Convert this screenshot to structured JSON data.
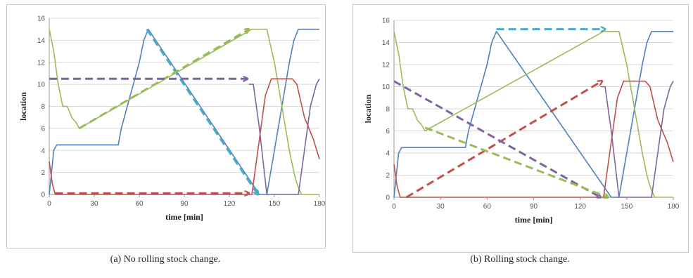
{
  "captions": {
    "a": "(a) No rolling stock change.",
    "b": "(b) Rolling stock change."
  },
  "chart_data": [
    {
      "type": "line",
      "xlabel": "time [min]",
      "ylabel": "location",
      "xlim": [
        0,
        180
      ],
      "ylim": [
        0,
        16
      ],
      "xticks": [
        0,
        30,
        60,
        90,
        120,
        150,
        180
      ],
      "yticks": [
        0,
        2,
        4,
        6,
        8,
        10,
        12,
        14,
        16
      ],
      "grid": "horizontal",
      "series": [
        {
          "color": "#4f81bd",
          "x": [
            0,
            3,
            5,
            46,
            48,
            52,
            56,
            60,
            63,
            66,
            140,
            145,
            150,
            155,
            160,
            163,
            166,
            180
          ],
          "y": [
            0,
            4,
            4.5,
            4.5,
            6,
            8,
            10,
            12,
            14,
            15,
            0,
            0,
            4,
            8,
            12,
            14,
            15,
            15
          ]
        },
        {
          "color": "#9bbb59",
          "x": [
            0,
            3,
            6,
            9,
            12,
            15,
            18,
            20,
            135,
            145,
            150,
            155,
            160,
            163,
            165,
            168,
            180
          ],
          "y": [
            15,
            13,
            10,
            8,
            8,
            7,
            6.5,
            6,
            15,
            15,
            12,
            8,
            4,
            2,
            1,
            0,
            0
          ]
        },
        {
          "color": "#c0504d",
          "x": [
            0,
            2,
            4,
            135,
            138,
            141,
            144,
            148,
            162,
            165,
            170,
            176,
            180
          ],
          "y": [
            3,
            1,
            0,
            0,
            3,
            6,
            9,
            10.5,
            10.5,
            10,
            7,
            5,
            3.2
          ]
        },
        {
          "color": "#8064a2",
          "x": [
            133,
            136,
            140,
            145,
            152,
            160,
            166,
            170,
            174,
            178,
            180
          ],
          "y": [
            10,
            10,
            6,
            0,
            0,
            0,
            0,
            4,
            8,
            10,
            10.5
          ]
        }
      ],
      "arrows": [
        {
          "color": "#4bacc6",
          "from": [
            65,
            15
          ],
          "to": [
            139,
            0
          ]
        },
        {
          "color": "#9bbb59",
          "from": [
            20,
            6
          ],
          "to": [
            133,
            15
          ]
        },
        {
          "color": "#8064a2",
          "from": [
            0,
            10.5
          ],
          "to": [
            132,
            10.5
          ]
        },
        {
          "color": "#c0504d",
          "from": [
            4,
            0.1
          ],
          "to": [
            133,
            0.1
          ]
        }
      ]
    },
    {
      "type": "line",
      "xlabel": "time [min]",
      "ylabel": "location",
      "xlim": [
        0,
        180
      ],
      "ylim": [
        0,
        16
      ],
      "xticks": [
        0,
        30,
        60,
        90,
        120,
        150,
        180
      ],
      "yticks": [
        0,
        2,
        4,
        6,
        8,
        10,
        12,
        14,
        16
      ],
      "grid": "horizontal",
      "series": [
        {
          "color": "#4f81bd",
          "x": [
            0,
            3,
            5,
            46,
            48,
            52,
            56,
            60,
            63,
            66,
            140,
            145,
            150,
            155,
            160,
            163,
            166,
            180
          ],
          "y": [
            0,
            4,
            4.5,
            4.5,
            6,
            8,
            10,
            12,
            14,
            15,
            0,
            0,
            4,
            8,
            12,
            14,
            15,
            15
          ]
        },
        {
          "color": "#9bbb59",
          "x": [
            0,
            3,
            6,
            9,
            12,
            15,
            18,
            20,
            135,
            145,
            150,
            155,
            160,
            163,
            165,
            168,
            180
          ],
          "y": [
            15,
            13,
            10,
            8,
            8,
            7,
            6.5,
            6,
            15,
            15,
            12,
            8,
            4,
            2,
            1,
            0,
            0
          ]
        },
        {
          "color": "#c0504d",
          "x": [
            0,
            2,
            4,
            135,
            138,
            141,
            144,
            148,
            162,
            165,
            170,
            176,
            180
          ],
          "y": [
            3,
            1,
            0,
            0,
            3,
            6,
            9,
            10.5,
            10.5,
            10,
            7,
            5,
            3.2
          ]
        },
        {
          "color": "#8064a2",
          "x": [
            133,
            136,
            140,
            145,
            152,
            160,
            166,
            170,
            174,
            178,
            180
          ],
          "y": [
            10,
            10,
            6,
            0,
            0,
            0,
            0,
            4,
            8,
            10,
            10.5
          ]
        }
      ],
      "arrows": [
        {
          "color": "#4bacc6",
          "from": [
            66,
            15.2
          ],
          "to": [
            136,
            15.2
          ]
        },
        {
          "color": "#c0504d",
          "from": [
            8,
            0
          ],
          "to": [
            134,
            10.5
          ]
        },
        {
          "color": "#8064a2",
          "from": [
            0,
            10.5
          ],
          "to": [
            133,
            0
          ]
        },
        {
          "color": "#9bbb59",
          "from": [
            20,
            6.3
          ],
          "to": [
            138,
            0
          ]
        }
      ]
    }
  ]
}
